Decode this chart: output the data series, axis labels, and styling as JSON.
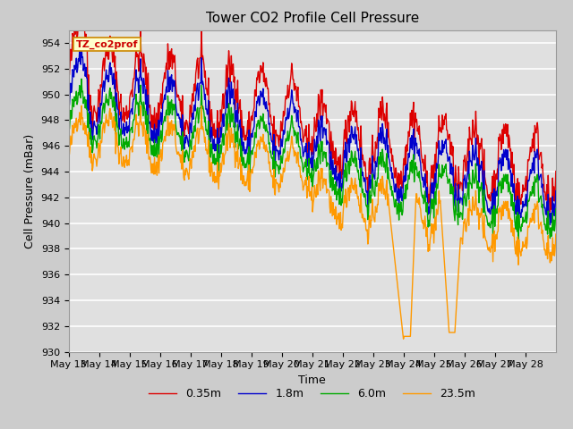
{
  "title": "Tower CO2 Profile Cell Pressure",
  "xlabel": "Time",
  "ylabel": "Cell Pressure (mBar)",
  "ylim": [
    930,
    955
  ],
  "yticks": [
    930,
    932,
    934,
    936,
    938,
    940,
    942,
    944,
    946,
    948,
    950,
    952,
    954
  ],
  "x_labels": [
    "May 13",
    "May 14",
    "May 15",
    "May 16",
    "May 17",
    "May 18",
    "May 19",
    "May 20",
    "May 21",
    "May 22",
    "May 23",
    "May 24",
    "May 25",
    "May 26",
    "May 27",
    "May 28"
  ],
  "n_days": 16,
  "colors": {
    "0.35m": "#dd0000",
    "1.8m": "#0000cc",
    "6.0m": "#00aa00",
    "23.5m": "#ff9900"
  },
  "legend_label": "TZ_co2prof",
  "legend_box_color": "#ffffcc",
  "legend_box_edge": "#cc8800",
  "fig_bg_color": "#cccccc",
  "plot_bg_color": "#e0e0e0",
  "grid_color": "#ffffff",
  "title_fontsize": 11,
  "axis_fontsize": 9,
  "tick_fontsize": 8,
  "line_width": 1.0
}
